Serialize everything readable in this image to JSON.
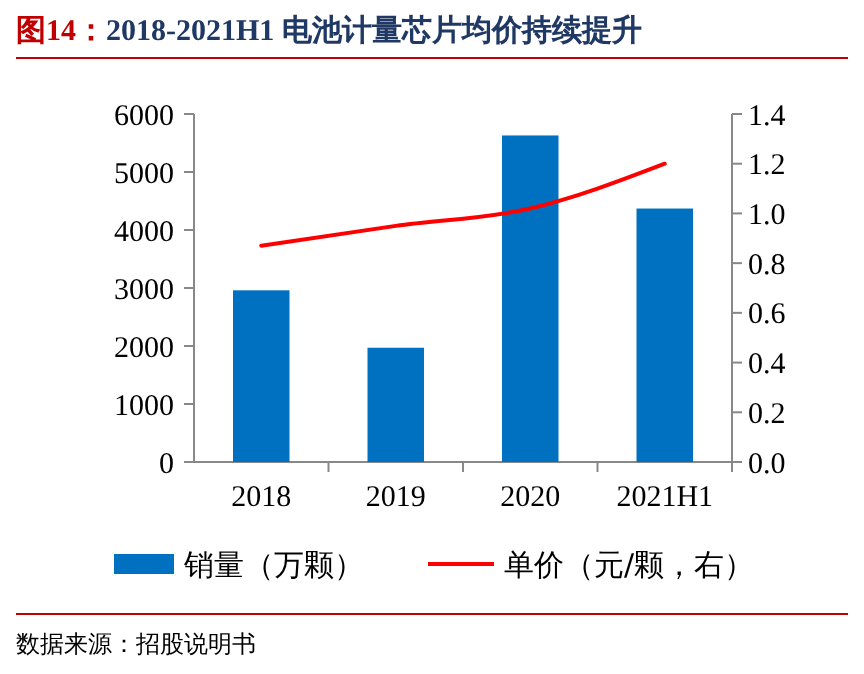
{
  "chart_data": {
    "type": "bar",
    "title": "图14：2018-2021H1 电池计量芯片均价持续提升",
    "categories": [
      "2018",
      "2019",
      "2020",
      "2021H1"
    ],
    "series": [
      {
        "name": "销量（万颗）",
        "color": "#0070c0",
        "values": [
          2960,
          1970,
          5630,
          4370
        ]
      },
      {
        "name": "单价（元/颗，右）",
        "type": "line",
        "axis": "y2",
        "color": "#ff0000",
        "values": [
          0.87,
          0.95,
          1.02,
          1.2
        ]
      }
    ],
    "ylim": [
      0,
      6000
    ],
    "yticks": [
      0,
      1000,
      2000,
      3000,
      4000,
      5000,
      6000
    ],
    "y2lim": [
      0,
      1.4
    ],
    "y2ticks": [
      {
        "value": 0,
        "label": "0.0"
      },
      0.2,
      0.4,
      0.6,
      0.8,
      {
        "value": 1,
        "label": "1.0"
      },
      1.2,
      1.4
    ],
    "legend": "bottom",
    "annotations": [
      "数据来源：招股说明书"
    ]
  }
}
